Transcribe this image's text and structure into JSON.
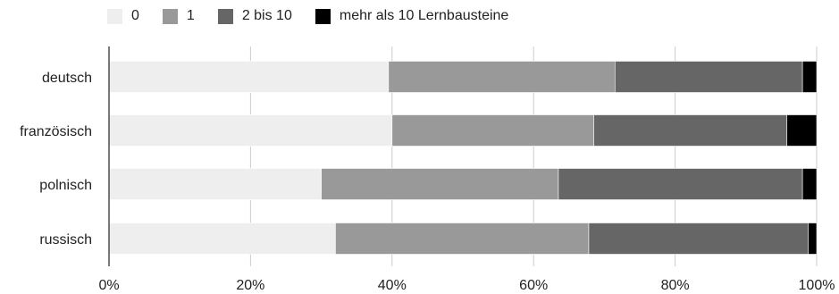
{
  "chart_data": {
    "type": "bar",
    "orientation": "horizontal",
    "stacked": true,
    "percent": true,
    "categories": [
      "deutsch",
      "französisch",
      "polnisch",
      "russisch"
    ],
    "series": [
      {
        "name": "0",
        "color": "#eeeeee",
        "values": [
          39.5,
          40,
          30,
          32
        ]
      },
      {
        "name": "1",
        "color": "#999999",
        "values": [
          32,
          28.5,
          33.5,
          35.8
        ]
      },
      {
        "name": "2 bis 10",
        "color": "#666666",
        "values": [
          26.5,
          27.3,
          34.5,
          31
        ]
      },
      {
        "name": "mehr als 10 Lernbausteine",
        "color": "#000000",
        "values": [
          2,
          4.2,
          2,
          1.2
        ]
      }
    ],
    "xlim": [
      0,
      100
    ],
    "xticks": [
      "0%",
      "20%",
      "40%",
      "60%",
      "80%",
      "100%"
    ],
    "grid": true,
    "legend_position": "top"
  }
}
